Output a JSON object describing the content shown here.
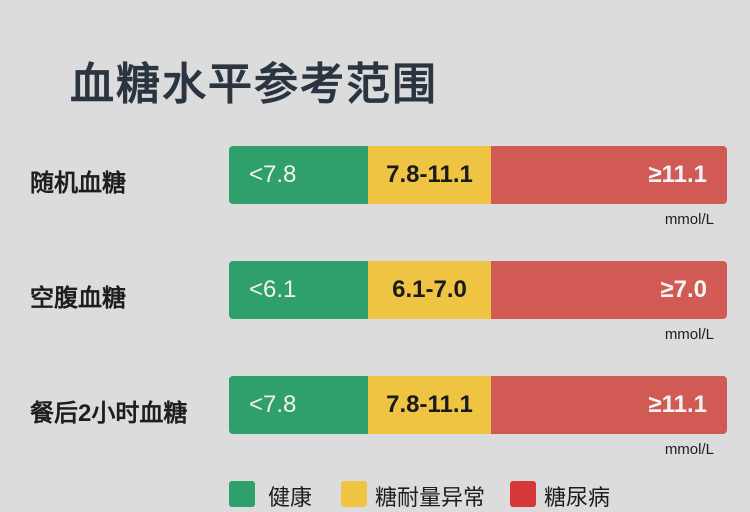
{
  "title": "血糖水平参考范围",
  "rows": [
    {
      "label": "随机血糖",
      "healthy": "<7.8",
      "impaired": "7.8-11.1",
      "diabetes": "≥11.1",
      "unit": "mmol/L"
    },
    {
      "label": "空腹血糖",
      "healthy": "<6.1",
      "impaired": "6.1-7.0",
      "diabetes": "≥7.0",
      "unit": "mmol/L"
    },
    {
      "label": "餐后2小时血糖",
      "healthy": "<7.8",
      "impaired": "7.8-11.1",
      "diabetes": "≥11.1",
      "unit": "mmol/L"
    }
  ],
  "legend": [
    {
      "label": "健康",
      "color": "#2f9f6b"
    },
    {
      "label": "糖耐量异常",
      "color": "#eec442"
    },
    {
      "label": "糖尿病",
      "color": "#d6383a"
    }
  ]
}
